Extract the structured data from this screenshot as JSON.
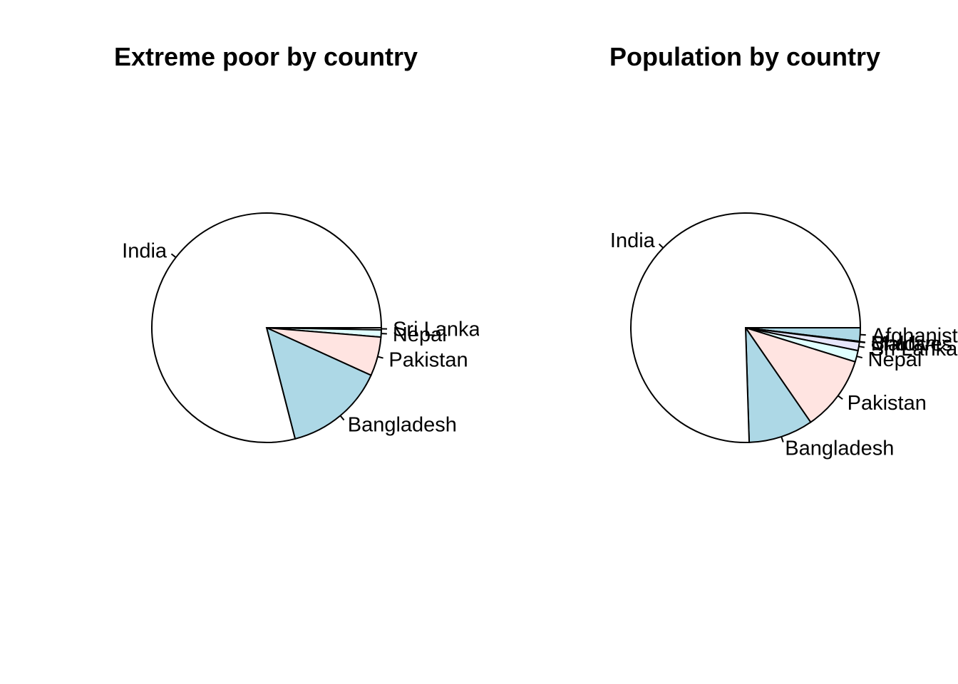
{
  "chart_data": [
    {
      "type": "pie",
      "title": "Extreme poor by country",
      "start_angle_deg": 0,
      "direction": "clockwise",
      "slices": [
        {
          "label": "Sri Lanka",
          "value": 0.3,
          "color": "#FFFFFF"
        },
        {
          "label": "Nepal",
          "value": 1.0,
          "color": "#E0FFFF"
        },
        {
          "label": "Pakistan",
          "value": 5.5,
          "color": "#FFE4E1"
        },
        {
          "label": "Bangladesh",
          "value": 14.2,
          "color": "#ADD8E6"
        },
        {
          "label": "India",
          "value": 79.0,
          "color": "#FFFFFF"
        }
      ]
    },
    {
      "type": "pie",
      "title": "Population by country",
      "start_angle_deg": 0,
      "direction": "clockwise",
      "slices": [
        {
          "label": "Afghanistan",
          "value": 1.9,
          "color": "#ADD8E6"
        },
        {
          "label": "Bhutan",
          "value": 0.05,
          "color": "#FFE4E1"
        },
        {
          "label": "Maldives",
          "value": 0.05,
          "color": "#E6E6FA"
        },
        {
          "label": "Sri Lanka",
          "value": 1.2,
          "color": "#E6E6FA"
        },
        {
          "label": "Nepal",
          "value": 1.6,
          "color": "#E0FFFF"
        },
        {
          "label": "Pakistan",
          "value": 10.6,
          "color": "#FFE4E1"
        },
        {
          "label": "Bangladesh",
          "value": 9.1,
          "color": "#ADD8E6"
        },
        {
          "label": "India",
          "value": 75.5,
          "color": "#FFFFFF"
        }
      ]
    }
  ]
}
